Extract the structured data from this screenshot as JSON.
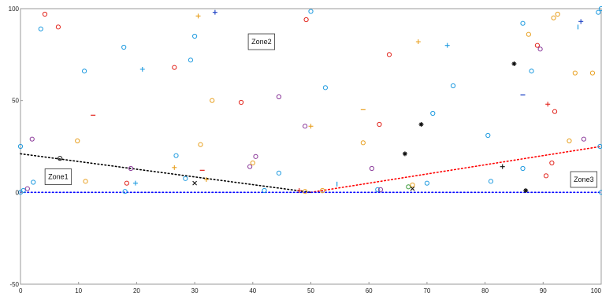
{
  "chart_data": {
    "type": "scatter",
    "title": "",
    "xlabel": "",
    "ylabel": "",
    "xlim": [
      0,
      100
    ],
    "ylim": [
      -50,
      100
    ],
    "x_ticks": [
      "0",
      "10",
      "20",
      "30",
      "40",
      "50",
      "60",
      "70",
      "80",
      "90",
      "100"
    ],
    "y_ticks": [
      "-50",
      "0",
      "50",
      "100"
    ],
    "grid": false,
    "annotations": [
      {
        "text": "Zone1",
        "x": 6.5,
        "y": 8.5
      },
      {
        "text": "Zone2",
        "x": 41.5,
        "y": 82
      },
      {
        "text": "Zone3",
        "x": 97,
        "y": 7
      }
    ],
    "boundaries": [
      {
        "name": "zone1-boundary",
        "color": "#000000",
        "x": [
          0,
          50
        ],
        "y": [
          21,
          0
        ]
      },
      {
        "name": "zone3-boundary",
        "color": "#ff0000",
        "x": [
          50,
          100
        ],
        "y": [
          0,
          25
        ]
      },
      {
        "name": "baseline",
        "color": "#0000ff",
        "x": [
          0,
          100
        ],
        "y": [
          0,
          0
        ]
      }
    ],
    "colors": {
      "blue": "#1f9be0",
      "red": "#e2241c",
      "orange": "#e8a020",
      "purple": "#8b3a9a",
      "green": "#3a9a3a",
      "black": "#111111",
      "navy": "#1a3fc4",
      "axis": "#999999"
    },
    "points": [
      {
        "x": 0.5,
        "y": 1,
        "m": "o",
        "c": "blue"
      },
      {
        "x": 1.2,
        "y": 2,
        "m": "o",
        "c": "purple"
      },
      {
        "x": 2.2,
        "y": 5.5,
        "m": "o",
        "c": "blue"
      },
      {
        "x": 2,
        "y": 29,
        "m": "o",
        "c": "purple"
      },
      {
        "x": 3.5,
        "y": 89,
        "m": "o",
        "c": "blue"
      },
      {
        "x": 4.2,
        "y": 97,
        "m": "o",
        "c": "red"
      },
      {
        "x": 6.5,
        "y": 90,
        "m": "o",
        "c": "red"
      },
      {
        "x": 6.8,
        "y": 18.5,
        "m": "o",
        "c": "black"
      },
      {
        "x": 9.8,
        "y": 28,
        "m": "o",
        "c": "orange"
      },
      {
        "x": 11,
        "y": 66,
        "m": "o",
        "c": "blue"
      },
      {
        "x": 11.2,
        "y": 6,
        "m": "o",
        "c": "orange"
      },
      {
        "x": 12.5,
        "y": 42,
        "m": "-",
        "c": "red"
      },
      {
        "x": 17.8,
        "y": 79,
        "m": "o",
        "c": "blue"
      },
      {
        "x": 18.3,
        "y": 5,
        "m": "o",
        "c": "red"
      },
      {
        "x": 18,
        "y": 0.5,
        "m": "o",
        "c": "blue"
      },
      {
        "x": 19,
        "y": 13,
        "m": "o",
        "c": "purple"
      },
      {
        "x": 19.8,
        "y": 5,
        "m": "+",
        "c": "blue"
      },
      {
        "x": 21,
        "y": 67,
        "m": "+",
        "c": "blue"
      },
      {
        "x": 26.5,
        "y": 68,
        "m": "o",
        "c": "red"
      },
      {
        "x": 26.8,
        "y": 20,
        "m": "o",
        "c": "blue"
      },
      {
        "x": 26.5,
        "y": 13.5,
        "m": "+",
        "c": "orange"
      },
      {
        "x": 28.4,
        "y": 7.5,
        "m": "o",
        "c": "blue"
      },
      {
        "x": 29.3,
        "y": 72,
        "m": "o",
        "c": "blue"
      },
      {
        "x": 30,
        "y": 85,
        "m": "o",
        "c": "blue"
      },
      {
        "x": 30.6,
        "y": 96,
        "m": "+",
        "c": "orange"
      },
      {
        "x": 31,
        "y": 26,
        "m": "o",
        "c": "orange"
      },
      {
        "x": 31.3,
        "y": 12,
        "m": "-",
        "c": "red"
      },
      {
        "x": 32,
        "y": 7,
        "m": "+",
        "c": "orange"
      },
      {
        "x": 30,
        "y": 5,
        "m": "x",
        "c": "black"
      },
      {
        "x": 33.5,
        "y": 98,
        "m": "+",
        "c": "navy"
      },
      {
        "x": 33,
        "y": 50,
        "m": "o",
        "c": "orange"
      },
      {
        "x": 38,
        "y": 49,
        "m": "o",
        "c": "red"
      },
      {
        "x": 39.5,
        "y": 14,
        "m": "o",
        "c": "purple"
      },
      {
        "x": 40,
        "y": 16,
        "m": "o",
        "c": "orange"
      },
      {
        "x": 40.5,
        "y": 19.5,
        "m": "o",
        "c": "purple"
      },
      {
        "x": 42,
        "y": 1,
        "m": "o",
        "c": "blue"
      },
      {
        "x": 44.5,
        "y": 52,
        "m": "o",
        "c": "purple"
      },
      {
        "x": 44.5,
        "y": 10.5,
        "m": "o",
        "c": "blue"
      },
      {
        "x": 48,
        "y": 1,
        "m": "+",
        "c": "red"
      },
      {
        "x": 49,
        "y": 0.5,
        "m": "o",
        "c": "orange"
      },
      {
        "x": 49,
        "y": 36,
        "m": "o",
        "c": "purple"
      },
      {
        "x": 49.2,
        "y": 94,
        "m": "o",
        "c": "red"
      },
      {
        "x": 50,
        "y": 36,
        "m": "+",
        "c": "orange"
      },
      {
        "x": 50,
        "y": 98.5,
        "m": "o",
        "c": "blue"
      },
      {
        "x": 52,
        "y": 1,
        "m": "o",
        "c": "orange"
      },
      {
        "x": 52.5,
        "y": 57,
        "m": "o",
        "c": "blue"
      },
      {
        "x": 54.5,
        "y": 4.5,
        "m": "|",
        "c": "blue"
      },
      {
        "x": 59,
        "y": 45,
        "m": "-",
        "c": "orange"
      },
      {
        "x": 59,
        "y": 27,
        "m": "o",
        "c": "orange"
      },
      {
        "x": 60.5,
        "y": 13,
        "m": "o",
        "c": "purple"
      },
      {
        "x": 61.5,
        "y": 1.5,
        "m": "o",
        "c": "blue"
      },
      {
        "x": 61.8,
        "y": 37,
        "m": "o",
        "c": "red"
      },
      {
        "x": 62,
        "y": 1.5,
        "m": "o",
        "c": "purple"
      },
      {
        "x": 63.5,
        "y": 75,
        "m": "o",
        "c": "red"
      },
      {
        "x": 66.2,
        "y": 21,
        "m": "*",
        "c": "black"
      },
      {
        "x": 66.8,
        "y": 3,
        "m": "o",
        "c": "green"
      },
      {
        "x": 67.5,
        "y": 2,
        "m": "x",
        "c": "black"
      },
      {
        "x": 67.5,
        "y": 4,
        "m": "o",
        "c": "orange"
      },
      {
        "x": 68.5,
        "y": 82,
        "m": "+",
        "c": "orange"
      },
      {
        "x": 69,
        "y": 37,
        "m": "*",
        "c": "black"
      },
      {
        "x": 70,
        "y": 5,
        "m": "o",
        "c": "blue"
      },
      {
        "x": 71,
        "y": 43,
        "m": "o",
        "c": "blue"
      },
      {
        "x": 73.5,
        "y": 80,
        "m": "+",
        "c": "blue"
      },
      {
        "x": 74.5,
        "y": 58,
        "m": "o",
        "c": "blue"
      },
      {
        "x": 80.5,
        "y": 31,
        "m": "o",
        "c": "blue"
      },
      {
        "x": 81,
        "y": 6,
        "m": "o",
        "c": "blue"
      },
      {
        "x": 83,
        "y": 14,
        "m": "+",
        "c": "black"
      },
      {
        "x": 85,
        "y": 70,
        "m": "*",
        "c": "black"
      },
      {
        "x": 86.5,
        "y": 92,
        "m": "o",
        "c": "blue"
      },
      {
        "x": 86.5,
        "y": 53,
        "m": "-",
        "c": "navy"
      },
      {
        "x": 86.5,
        "y": 13,
        "m": "o",
        "c": "blue"
      },
      {
        "x": 87,
        "y": 1,
        "m": "*",
        "c": "black"
      },
      {
        "x": 87.5,
        "y": 86,
        "m": "o",
        "c": "orange"
      },
      {
        "x": 88,
        "y": 66,
        "m": "o",
        "c": "blue"
      },
      {
        "x": 89,
        "y": 80,
        "m": "o",
        "c": "red"
      },
      {
        "x": 89.5,
        "y": 78,
        "m": "o",
        "c": "purple"
      },
      {
        "x": 90.5,
        "y": 9,
        "m": "o",
        "c": "red"
      },
      {
        "x": 90.8,
        "y": 48,
        "m": "+",
        "c": "red"
      },
      {
        "x": 91.5,
        "y": 16,
        "m": "o",
        "c": "red"
      },
      {
        "x": 91.8,
        "y": 95,
        "m": "o",
        "c": "orange"
      },
      {
        "x": 92,
        "y": 44,
        "m": "o",
        "c": "red"
      },
      {
        "x": 92.5,
        "y": 97,
        "m": "o",
        "c": "orange"
      },
      {
        "x": 94.5,
        "y": 28,
        "m": "o",
        "c": "orange"
      },
      {
        "x": 95.5,
        "y": 65,
        "m": "o",
        "c": "orange"
      },
      {
        "x": 96,
        "y": 90,
        "m": "|",
        "c": "blue"
      },
      {
        "x": 96.5,
        "y": 93,
        "m": "+",
        "c": "navy"
      },
      {
        "x": 97,
        "y": 29,
        "m": "o",
        "c": "purple"
      },
      {
        "x": 98.5,
        "y": 65,
        "m": "o",
        "c": "orange"
      },
      {
        "x": 99.5,
        "y": 98,
        "m": "o",
        "c": "blue"
      },
      {
        "x": 99.8,
        "y": 25,
        "m": "o",
        "c": "blue"
      },
      {
        "x": 0,
        "y": 25,
        "m": "o",
        "c": "blue"
      },
      {
        "x": 0,
        "y": 0,
        "m": "o",
        "c": "blue"
      },
      {
        "x": 100,
        "y": 0,
        "m": "o",
        "c": "blue"
      },
      {
        "x": 100,
        "y": 100,
        "m": "o",
        "c": "blue"
      }
    ]
  }
}
